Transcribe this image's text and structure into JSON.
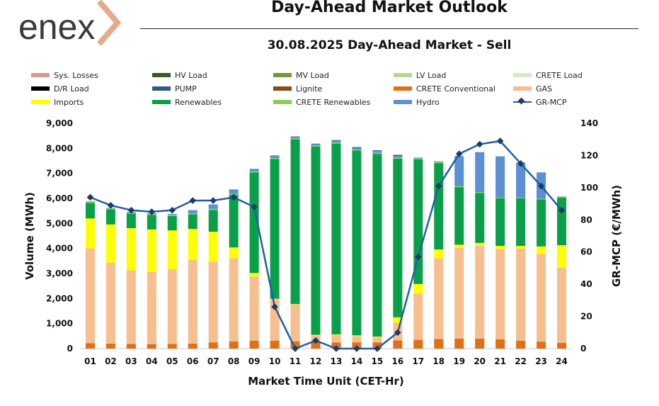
{
  "header": {
    "logo_text": "enex",
    "title": "Day-Ahead Market Outlook",
    "subtitle": "30.08.2025  Day-Ahead Market - Sell"
  },
  "colors": {
    "Sys. Losses": "#d79a94",
    "HV Load": "#3c5a22",
    "MV Load": "#6f9a3c",
    "LV Load": "#b7d68f",
    "CRETE Load": "#d8e8c6",
    "D/R Load": "#000000",
    "PUMP": "#2c5a8c",
    "Lignite": "#8a4b10",
    "CRETE Conventional": "#e07018",
    "GAS": "#f7bf8f",
    "Imports": "#ffff00",
    "Renewables": "#0aa04a",
    "CRETE Renewables": "#8ccc5a",
    "Hydro": "#5b8fd6",
    "GR-MCP": "#1f5fa8"
  },
  "chart_data": {
    "type": "bar",
    "stacked": true,
    "title": "30.08.2025  Day-Ahead Market - Sell",
    "xlabel": "Market Time Unit (CET-Hr)",
    "ylabel": "Volume (MWh)",
    "y2label": "GR-MCP (€/MWh)",
    "ylim": [
      0,
      9000
    ],
    "y2lim": [
      0,
      140
    ],
    "y_ticks": [
      "0",
      "1,000",
      "2,000",
      "3,000",
      "4,000",
      "5,000",
      "6,000",
      "7,000",
      "8,000",
      "9,000"
    ],
    "y2_ticks": [
      "0",
      "20",
      "40",
      "60",
      "80",
      "100",
      "120",
      "140"
    ],
    "categories": [
      "01",
      "02",
      "03",
      "04",
      "05",
      "06",
      "07",
      "08",
      "09",
      "10",
      "11",
      "12",
      "13",
      "14",
      "15",
      "16",
      "17",
      "18",
      "19",
      "20",
      "21",
      "22",
      "23",
      "24"
    ],
    "legend": [
      "Sys. Losses",
      "HV Load",
      "MV Load",
      "LV Load",
      "CRETE Load",
      "D/R Load",
      "PUMP",
      "Lignite",
      "CRETE Conventional",
      "GAS",
      "Imports",
      "Renewables",
      "CRETE Renewables",
      "Hydro",
      "GR-MCP"
    ],
    "series": [
      {
        "name": "CRETE Conventional",
        "values": [
          220,
          200,
          190,
          180,
          190,
          200,
          250,
          290,
          320,
          320,
          290,
          260,
          250,
          250,
          250,
          330,
          350,
          380,
          400,
          400,
          370,
          320,
          280,
          230
        ]
      },
      {
        "name": "GAS",
        "values": [
          3780,
          3230,
          2940,
          2880,
          2980,
          3350,
          3220,
          3320,
          2560,
          1640,
          1470,
          260,
          300,
          250,
          200,
          700,
          1850,
          3230,
          3630,
          3700,
          3610,
          3680,
          3500,
          3000
        ]
      },
      {
        "name": "Imports",
        "values": [
          1200,
          1530,
          1680,
          1700,
          1550,
          1230,
          1200,
          430,
          140,
          30,
          20,
          30,
          20,
          30,
          30,
          220,
          380,
          350,
          120,
          120,
          120,
          100,
          300,
          900
        ]
      },
      {
        "name": "Renewables",
        "values": [
          620,
          600,
          580,
          580,
          580,
          580,
          870,
          2100,
          4020,
          5580,
          6580,
          7520,
          7620,
          7380,
          7300,
          6340,
          4980,
          3450,
          2300,
          2000,
          1900,
          1900,
          1880,
          1900
        ]
      },
      {
        "name": "CRETE Renewables",
        "values": [
          40,
          40,
          40,
          40,
          40,
          40,
          40,
          40,
          40,
          40,
          40,
          40,
          40,
          40,
          40,
          40,
          40,
          40,
          40,
          30,
          30,
          30,
          30,
          40
        ]
      },
      {
        "name": "Hydro",
        "values": [
          20,
          20,
          30,
          30,
          40,
          130,
          180,
          180,
          100,
          110,
          80,
          80,
          80,
          70,
          70,
          70,
          30,
          30,
          1200,
          1600,
          1650,
          1400,
          1050,
          10
        ]
      },
      {
        "name": "PUMP",
        "values": [
          0,
          0,
          0,
          0,
          0,
          0,
          0,
          0,
          0,
          0,
          0,
          0,
          20,
          30,
          30,
          40,
          0,
          0,
          0,
          0,
          0,
          0,
          0,
          0
        ]
      }
    ],
    "line_series": {
      "name": "GR-MCP",
      "axis": "right",
      "values": [
        94,
        89,
        86,
        85,
        86,
        92,
        92,
        94,
        88,
        26,
        0,
        5,
        0,
        0,
        0,
        10,
        57,
        101,
        121,
        127,
        129,
        115,
        101,
        86
      ]
    }
  }
}
